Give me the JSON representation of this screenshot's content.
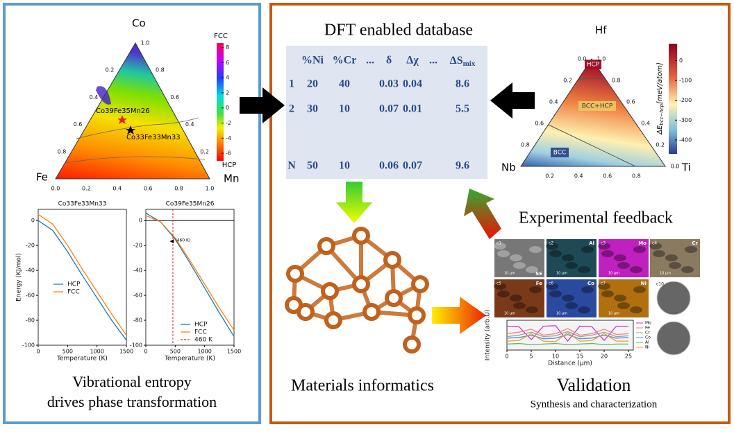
{
  "left_panel": {
    "ternary": {
      "vertices": [
        "Co",
        "Fe",
        "Mn"
      ],
      "right_ticks": [
        0.2,
        0.4,
        0.6,
        0.8,
        {
          "value": 1,
          "label": "1.0"
        }
      ],
      "left_ticks": [
        0.2,
        0.4,
        0.6,
        0.8
      ],
      "bottom_ticks": [
        {
          "value": 0,
          "label": "0.0"
        },
        0.2,
        0.4,
        0.6,
        0.8,
        {
          "value": 1,
          "label": "1.0"
        }
      ],
      "annotations": [
        "Co39Fe35Mn26",
        "Co33Fe33Mn33"
      ],
      "colorbar": {
        "top_label": "FCC",
        "bottom_label": "HCP",
        "lim": [
          -7,
          8.6
        ],
        "ticks": [
          8,
          6,
          4,
          2,
          0,
          -2,
          -4,
          -6
        ]
      }
    },
    "plots": [
      {
        "type": "line",
        "title": "Co33Fe33Mn33",
        "ylabel": "Energy (KJ/mol)",
        "xlabel": "Temperature (K)",
        "x": [
          0,
          250,
          500,
          750,
          1000,
          1250,
          1500
        ],
        "series": [
          {
            "name": "HCP",
            "color": "#1f77b4",
            "values": [
              0,
              -8,
              -25,
              -44,
              -62,
              -80,
              -96
            ]
          },
          {
            "name": "FCC",
            "color": "#ff7f0e",
            "values": [
              5,
              -3,
              -20,
              -39,
              -57,
              -75,
              -92
            ]
          }
        ],
        "xlim": [
          0,
          1500
        ],
        "ylim": [
          -100,
          9
        ],
        "xticks": [
          0,
          500,
          1000,
          1500
        ],
        "yticks": [
          0,
          -20,
          -40,
          -60,
          -80,
          -100
        ]
      },
      {
        "type": "line",
        "title": "Co39Fe35Mn26",
        "xlabel": "Temperature (K)",
        "x": [
          0,
          250,
          500,
          750,
          1000,
          1250,
          1500
        ],
        "series": [
          {
            "name": "HCP",
            "color": "#1f77b4",
            "values": [
              6,
              -1,
              -15,
              -34,
              -54,
              -74,
              -93
            ]
          },
          {
            "name": "FCC",
            "color": "#ff7f0e",
            "values": [
              4,
              -1,
              -14,
              -32,
              -51,
              -70,
              -88
            ]
          }
        ],
        "vline": {
          "name": "460 K",
          "value": 460,
          "color": "#d62728"
        },
        "hline": 0,
        "annotation": "(460 K)",
        "xlim": [
          0,
          1500
        ],
        "ylim": [
          -100,
          9
        ],
        "xticks": [
          0,
          500,
          1000,
          1500
        ],
        "yticks": [
          0,
          -20,
          -40,
          -60,
          -80,
          -100
        ]
      }
    ],
    "caption": [
      "Vibrational entropy",
      "drives phase transformation"
    ]
  },
  "database": {
    "title": "DFT enabled database",
    "columns": [
      "%Ni",
      "%Cr",
      "...",
      "δ",
      "Δχ",
      "...",
      "ΔS"
    ],
    "column_sub": "mix",
    "rows": [
      {
        "id": "1",
        "values": [
          20,
          40,
          0.03,
          0.04,
          8.6
        ]
      },
      {
        "id": "2",
        "values": [
          30,
          10,
          0.07,
          0.01,
          5.5
        ]
      },
      {
        "id": "N",
        "values": [
          50,
          10,
          0.06,
          0.07,
          9.6
        ]
      }
    ]
  },
  "informatics": {
    "caption": "Materials informatics"
  },
  "right_ternary": {
    "vertices": [
      "Hf",
      "Nb",
      "Ti"
    ],
    "right_ticks": [
      {
        "value": 0,
        "label": "0.0"
      },
      0.2,
      0.4,
      0.6,
      0.8,
      {
        "value": 1,
        "label": "1.0"
      }
    ],
    "left_ticks": [
      {
        "value": 0,
        "label": "0.0"
      },
      0.2,
      0.4,
      0.6,
      0.8
    ],
    "bottom_ticks": [
      0.2,
      0.4,
      0.6,
      0.8
    ],
    "regions": [
      "HCP",
      "BCC+HCP",
      "BCC"
    ],
    "colorbar": {
      "label": "ΔE",
      "label_sub": "bcc−hcp",
      "label_unit": "[meV/atom]",
      "lim": [
        -470,
        85
      ],
      "ticks": [
        0,
        -100,
        -200,
        -300,
        -400
      ]
    }
  },
  "validation": {
    "feedback": "Experimental feedback",
    "title": "Validation",
    "subtitle": "Synthesis and characterization",
    "maps": [
      {
        "id": "c1",
        "label": "SE"
      },
      {
        "id": "c2",
        "label": "Al"
      },
      {
        "id": "c3",
        "label": "Mo"
      },
      {
        "id": "c4",
        "label": "Cr"
      },
      {
        "id": "c5",
        "label": "Fe"
      },
      {
        "id": "c6",
        "label": "Co"
      },
      {
        "id": "c7",
        "label": "Ni"
      }
    ],
    "scale": "10 µm",
    "inset": "c10",
    "linescan": {
      "xlabel": "Distance (µm)",
      "ylabel": "Intensity (arb.U)",
      "x": [
        0,
        2.5,
        5,
        7.5,
        10,
        12.5,
        15,
        17.5,
        20,
        22.5,
        25
      ],
      "xlim": [
        0,
        26
      ],
      "ylim": [
        0,
        1
      ],
      "xticks": [
        0,
        5,
        10,
        15,
        20,
        25
      ],
      "series": [
        {
          "name": "Mo",
          "color": "#cc33cc",
          "values": [
            0.8,
            0.78,
            0.35,
            0.8,
            0.82,
            0.3,
            0.8,
            0.78,
            0.32,
            0.8,
            0.8
          ]
        },
        {
          "name": "Fe",
          "color": "#f08080",
          "values": [
            0.55,
            0.6,
            0.7,
            0.5,
            0.55,
            0.72,
            0.5,
            0.55,
            0.7,
            0.52,
            0.55
          ]
        },
        {
          "name": "Cr",
          "color": "#a0a0a0",
          "values": [
            0.45,
            0.5,
            0.6,
            0.45,
            0.48,
            0.62,
            0.45,
            0.5,
            0.6,
            0.45,
            0.48
          ]
        },
        {
          "name": "Co",
          "color": "#4a90d9",
          "values": [
            0.4,
            0.42,
            0.5,
            0.38,
            0.4,
            0.52,
            0.38,
            0.4,
            0.5,
            0.4,
            0.42
          ]
        },
        {
          "name": "Al",
          "color": "#5cb85c",
          "values": [
            0.2,
            0.22,
            0.18,
            0.2,
            0.22,
            0.18,
            0.2,
            0.22,
            0.18,
            0.2,
            0.2
          ]
        },
        {
          "name": "Ni",
          "color": "#f0a030",
          "values": [
            0.3,
            0.32,
            0.55,
            0.3,
            0.28,
            0.58,
            0.3,
            0.32,
            0.55,
            0.3,
            0.3
          ]
        }
      ]
    }
  }
}
